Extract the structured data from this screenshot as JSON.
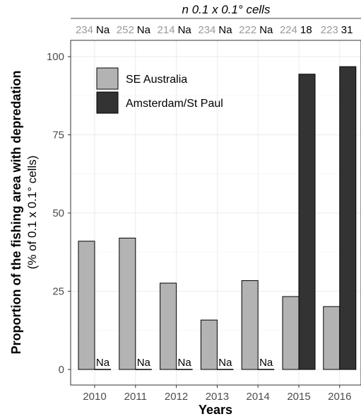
{
  "chart_data": {
    "type": "bar",
    "top_title": "n 0.1 x 0.1° cells",
    "ylabel": "Proportion of the fishing area with depredation",
    "ylabel_sub": "(% of 0.1 x 0.1° cells)",
    "xlabel": "Years",
    "categories": [
      "2010",
      "2011",
      "2012",
      "2013",
      "2014",
      "2015",
      "2016"
    ],
    "ylim": [
      0,
      100
    ],
    "yticks": [
      "0",
      "25",
      "50",
      "75",
      "100"
    ],
    "grid": true,
    "legend_position": "top-left",
    "series": [
      {
        "name": "SE Australia",
        "color": "#b3b3b3",
        "values": [
          41,
          42,
          27.6,
          15.8,
          28.4,
          23.3,
          20.1
        ],
        "cell_counts": [
          "234",
          "252",
          "214",
          "234",
          "222",
          "224",
          "223"
        ]
      },
      {
        "name": "Amsterdam/St Paul",
        "color": "#333333",
        "values": [
          null,
          null,
          null,
          null,
          null,
          94.4,
          96.8
        ],
        "cell_counts": [
          "Na",
          "Na",
          "Na",
          "Na",
          "Na",
          "18",
          "31"
        ],
        "bar_labels": [
          "Na",
          "Na",
          "Na",
          "Na",
          "Na",
          "",
          ""
        ]
      }
    ]
  }
}
